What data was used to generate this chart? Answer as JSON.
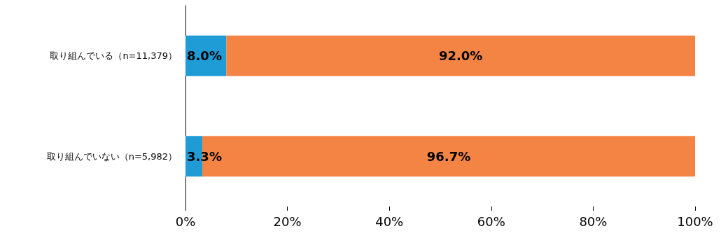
{
  "chart_data": {
    "type": "bar",
    "orientation": "horizontal",
    "stacked": true,
    "categories": [
      "取り組んでいる（n=11,379）",
      "取り組んでいない（n=5,982）"
    ],
    "series": [
      {
        "color": "#1f9bd6",
        "values": [
          8.0,
          3.3
        ],
        "value_labels": [
          "8.0%",
          "3.3%"
        ]
      },
      {
        "color": "#f48444",
        "values": [
          92.0,
          96.7
        ],
        "value_labels": [
          "92.0%",
          "96.7%"
        ]
      }
    ],
    "xlim": [
      0,
      100
    ],
    "xticks": [
      {
        "value": 0,
        "label": "0%"
      },
      {
        "value": 20,
        "label": "20%"
      },
      {
        "value": 40,
        "label": "40%"
      },
      {
        "value": 60,
        "label": "60%"
      },
      {
        "value": 80,
        "label": "80%"
      },
      {
        "value": 100,
        "label": "100%"
      }
    ],
    "grid": false
  }
}
